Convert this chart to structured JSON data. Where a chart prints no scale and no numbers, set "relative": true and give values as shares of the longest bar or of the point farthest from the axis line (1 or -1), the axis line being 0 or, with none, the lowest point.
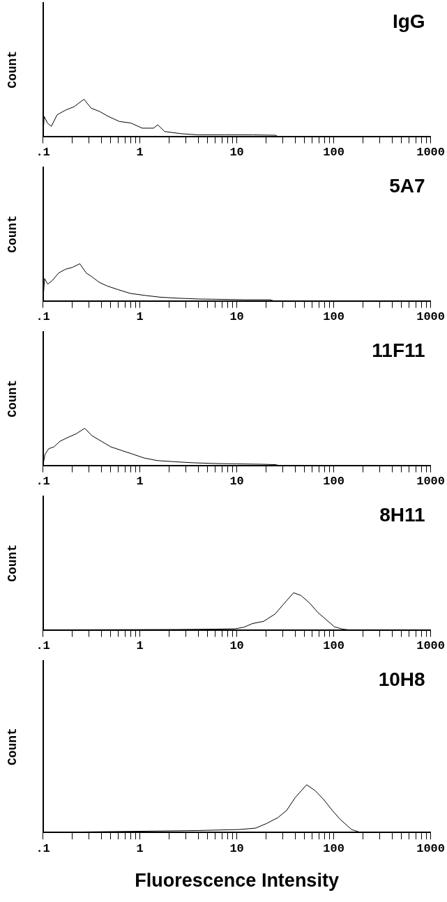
{
  "chart_data": [
    {
      "type": "line",
      "title": "IgG",
      "ylabel": "Count",
      "relative": true,
      "log": "x",
      "grid": false,
      "legend": false,
      "marker": "none",
      "xlim": [
        0.1,
        1000
      ],
      "xticks": [
        {
          "value": 0.1,
          "label": ".1"
        },
        {
          "value": 0.2,
          "label": null
        },
        {
          "value": 0.3,
          "label": null
        },
        {
          "value": 0.4,
          "label": null
        },
        {
          "value": 0.5,
          "label": null
        },
        {
          "value": 0.6,
          "label": null
        },
        {
          "value": 0.7,
          "label": null
        },
        {
          "value": 0.8,
          "label": null
        },
        {
          "value": 0.9,
          "label": null
        },
        1,
        {
          "value": 2,
          "label": null
        },
        {
          "value": 3,
          "label": null
        },
        {
          "value": 4,
          "label": null
        },
        {
          "value": 5,
          "label": null
        },
        {
          "value": 6,
          "label": null
        },
        {
          "value": 7,
          "label": null
        },
        {
          "value": 8,
          "label": null
        },
        {
          "value": 9,
          "label": null
        },
        10,
        {
          "value": 20,
          "label": null
        },
        {
          "value": 30,
          "label": null
        },
        {
          "value": 40,
          "label": null
        },
        {
          "value": 50,
          "label": null
        },
        {
          "value": 60,
          "label": null
        },
        {
          "value": 70,
          "label": null
        },
        {
          "value": 80,
          "label": null
        },
        {
          "value": 90,
          "label": null
        },
        100,
        {
          "value": 200,
          "label": null
        },
        {
          "value": 300,
          "label": null
        },
        {
          "value": 400,
          "label": null
        },
        {
          "value": 500,
          "label": null
        },
        {
          "value": 600,
          "label": null
        },
        {
          "value": 700,
          "label": null
        },
        {
          "value": 800,
          "label": null
        },
        {
          "value": 900,
          "label": null
        },
        1000
      ],
      "x": [
        0.1,
        0.103,
        0.111,
        0.122,
        0.14,
        0.172,
        0.21,
        0.265,
        0.314,
        0.384,
        0.47,
        0.616,
        0.805,
        1.06,
        1.38,
        1.53,
        1.8,
        2.7,
        4,
        7.4,
        14.6,
        25,
        26.4,
        1000
      ],
      "series": [
        {
          "color": "#000000",
          "values": [
            0,
            0.54,
            0.36,
            0.27,
            0.58,
            0.71,
            0.8,
            1,
            0.76,
            0.67,
            0.54,
            0.4,
            0.36,
            0.22,
            0.22,
            0.31,
            0.13,
            0.07,
            0.04,
            0.04,
            0.04,
            0.03,
            0,
            0
          ]
        }
      ]
    },
    {
      "type": "line",
      "title": "5A7",
      "ylabel": "Count",
      "relative": true,
      "log": "x",
      "grid": false,
      "legend": false,
      "marker": "none",
      "xlim": [
        0.1,
        1000
      ],
      "xticks": [
        {
          "value": 0.1,
          "label": ".1"
        },
        {
          "value": 0.2,
          "label": null
        },
        {
          "value": 0.3,
          "label": null
        },
        {
          "value": 0.4,
          "label": null
        },
        {
          "value": 0.5,
          "label": null
        },
        {
          "value": 0.6,
          "label": null
        },
        {
          "value": 0.7,
          "label": null
        },
        {
          "value": 0.8,
          "label": null
        },
        {
          "value": 0.9,
          "label": null
        },
        1,
        {
          "value": 2,
          "label": null
        },
        {
          "value": 3,
          "label": null
        },
        {
          "value": 4,
          "label": null
        },
        {
          "value": 5,
          "label": null
        },
        {
          "value": 6,
          "label": null
        },
        {
          "value": 7,
          "label": null
        },
        {
          "value": 8,
          "label": null
        },
        {
          "value": 9,
          "label": null
        },
        10,
        {
          "value": 20,
          "label": null
        },
        {
          "value": 30,
          "label": null
        },
        {
          "value": 40,
          "label": null
        },
        {
          "value": 50,
          "label": null
        },
        {
          "value": 60,
          "label": null
        },
        {
          "value": 70,
          "label": null
        },
        {
          "value": 80,
          "label": null
        },
        {
          "value": 90,
          "label": null
        },
        100,
        {
          "value": 200,
          "label": null
        },
        {
          "value": 300,
          "label": null
        },
        {
          "value": 400,
          "label": null
        },
        {
          "value": 500,
          "label": null
        },
        {
          "value": 600,
          "label": null
        },
        {
          "value": 700,
          "label": null
        },
        {
          "value": 800,
          "label": null
        },
        {
          "value": 900,
          "label": null
        },
        1000
      ],
      "x": [
        0.1,
        0.104,
        0.112,
        0.125,
        0.145,
        0.17,
        0.2,
        0.24,
        0.28,
        0.32,
        0.38,
        0.46,
        0.6,
        0.8,
        1.1,
        1.6,
        2.5,
        4,
        7,
        12,
        22,
        24,
        1000
      ],
      "series": [
        {
          "color": "#000000",
          "values": [
            0,
            0.6,
            0.45,
            0.55,
            0.75,
            0.85,
            0.9,
            1,
            0.75,
            0.65,
            0.5,
            0.4,
            0.3,
            0.2,
            0.15,
            0.1,
            0.07,
            0.05,
            0.04,
            0.03,
            0.03,
            0,
            0
          ]
        }
      ]
    },
    {
      "type": "line",
      "title": "11F11",
      "ylabel": "Count",
      "relative": true,
      "log": "x",
      "grid": false,
      "legend": false,
      "marker": "none",
      "xlim": [
        0.1,
        1000
      ],
      "xticks": [
        {
          "value": 0.1,
          "label": ".1"
        },
        {
          "value": 0.2,
          "label": null
        },
        {
          "value": 0.3,
          "label": null
        },
        {
          "value": 0.4,
          "label": null
        },
        {
          "value": 0.5,
          "label": null
        },
        {
          "value": 0.6,
          "label": null
        },
        {
          "value": 0.7,
          "label": null
        },
        {
          "value": 0.8,
          "label": null
        },
        {
          "value": 0.9,
          "label": null
        },
        1,
        {
          "value": 2,
          "label": null
        },
        {
          "value": 3,
          "label": null
        },
        {
          "value": 4,
          "label": null
        },
        {
          "value": 5,
          "label": null
        },
        {
          "value": 6,
          "label": null
        },
        {
          "value": 7,
          "label": null
        },
        {
          "value": 8,
          "label": null
        },
        {
          "value": 9,
          "label": null
        },
        10,
        {
          "value": 20,
          "label": null
        },
        {
          "value": 30,
          "label": null
        },
        {
          "value": 40,
          "label": null
        },
        {
          "value": 50,
          "label": null
        },
        {
          "value": 60,
          "label": null
        },
        {
          "value": 70,
          "label": null
        },
        {
          "value": 80,
          "label": null
        },
        {
          "value": 90,
          "label": null
        },
        100,
        {
          "value": 200,
          "label": null
        },
        {
          "value": 300,
          "label": null
        },
        {
          "value": 400,
          "label": null
        },
        {
          "value": 500,
          "label": null
        },
        {
          "value": 600,
          "label": null
        },
        {
          "value": 700,
          "label": null
        },
        {
          "value": 800,
          "label": null
        },
        {
          "value": 900,
          "label": null
        },
        1000
      ],
      "x": [
        0.1,
        0.105,
        0.115,
        0.13,
        0.15,
        0.18,
        0.22,
        0.27,
        0.32,
        0.4,
        0.5,
        0.65,
        0.85,
        1.1,
        1.5,
        2.2,
        3.5,
        6,
        10,
        18,
        25,
        27,
        1000
      ],
      "series": [
        {
          "color": "#000000",
          "values": [
            0,
            0.3,
            0.45,
            0.5,
            0.65,
            0.75,
            0.85,
            1,
            0.8,
            0.65,
            0.5,
            0.4,
            0.3,
            0.2,
            0.13,
            0.1,
            0.07,
            0.05,
            0.04,
            0.03,
            0.02,
            0,
            0
          ]
        }
      ]
    },
    {
      "type": "line",
      "title": "8H11",
      "ylabel": "Count",
      "relative": true,
      "log": "x",
      "grid": false,
      "legend": false,
      "marker": "none",
      "xlim": [
        0.1,
        1000
      ],
      "xticks": [
        {
          "value": 0.1,
          "label": ".1"
        },
        {
          "value": 0.2,
          "label": null
        },
        {
          "value": 0.3,
          "label": null
        },
        {
          "value": 0.4,
          "label": null
        },
        {
          "value": 0.5,
          "label": null
        },
        {
          "value": 0.6,
          "label": null
        },
        {
          "value": 0.7,
          "label": null
        },
        {
          "value": 0.8,
          "label": null
        },
        {
          "value": 0.9,
          "label": null
        },
        1,
        {
          "value": 2,
          "label": null
        },
        {
          "value": 3,
          "label": null
        },
        {
          "value": 4,
          "label": null
        },
        {
          "value": 5,
          "label": null
        },
        {
          "value": 6,
          "label": null
        },
        {
          "value": 7,
          "label": null
        },
        {
          "value": 8,
          "label": null
        },
        {
          "value": 9,
          "label": null
        },
        10,
        {
          "value": 20,
          "label": null
        },
        {
          "value": 30,
          "label": null
        },
        {
          "value": 40,
          "label": null
        },
        {
          "value": 50,
          "label": null
        },
        {
          "value": 60,
          "label": null
        },
        {
          "value": 70,
          "label": null
        },
        {
          "value": 80,
          "label": null
        },
        {
          "value": 90,
          "label": null
        },
        100,
        {
          "value": 200,
          "label": null
        },
        {
          "value": 300,
          "label": null
        },
        {
          "value": 400,
          "label": null
        },
        {
          "value": 500,
          "label": null
        },
        {
          "value": 600,
          "label": null
        },
        {
          "value": 700,
          "label": null
        },
        {
          "value": 800,
          "label": null
        },
        {
          "value": 900,
          "label": null
        },
        1000
      ],
      "x": [
        0.1,
        2.5,
        6,
        9.7,
        11.8,
        14.5,
        18.9,
        24.9,
        30.5,
        38.5,
        45.7,
        56,
        68.5,
        84,
        102,
        124,
        143,
        1000
      ],
      "series": [
        {
          "color": "#000000",
          "values": [
            0,
            0.01,
            0.02,
            0.03,
            0.07,
            0.17,
            0.23,
            0.43,
            0.7,
            1,
            0.93,
            0.73,
            0.47,
            0.27,
            0.08,
            0.02,
            0,
            0
          ]
        }
      ]
    },
    {
      "type": "line",
      "title": "10H8",
      "ylabel": "Count",
      "xlabel": "Fluorescence Intensity",
      "relative": true,
      "log": "x",
      "grid": false,
      "legend": false,
      "marker": "none",
      "xlim": [
        0.1,
        1000
      ],
      "xticks": [
        {
          "value": 0.1,
          "label": ".1"
        },
        {
          "value": 0.2,
          "label": null
        },
        {
          "value": 0.3,
          "label": null
        },
        {
          "value": 0.4,
          "label": null
        },
        {
          "value": 0.5,
          "label": null
        },
        {
          "value": 0.6,
          "label": null
        },
        {
          "value": 0.7,
          "label": null
        },
        {
          "value": 0.8,
          "label": null
        },
        {
          "value": 0.9,
          "label": null
        },
        1,
        {
          "value": 2,
          "label": null
        },
        {
          "value": 3,
          "label": null
        },
        {
          "value": 4,
          "label": null
        },
        {
          "value": 5,
          "label": null
        },
        {
          "value": 6,
          "label": null
        },
        {
          "value": 7,
          "label": null
        },
        {
          "value": 8,
          "label": null
        },
        {
          "value": 9,
          "label": null
        },
        10,
        {
          "value": 20,
          "label": null
        },
        {
          "value": 30,
          "label": null
        },
        {
          "value": 40,
          "label": null
        },
        {
          "value": 50,
          "label": null
        },
        {
          "value": 60,
          "label": null
        },
        {
          "value": 70,
          "label": null
        },
        {
          "value": 80,
          "label": null
        },
        {
          "value": 90,
          "label": null
        },
        100,
        {
          "value": 200,
          "label": null
        },
        {
          "value": 300,
          "label": null
        },
        {
          "value": 400,
          "label": null
        },
        {
          "value": 500,
          "label": null
        },
        {
          "value": 600,
          "label": null
        },
        {
          "value": 700,
          "label": null
        },
        {
          "value": 800,
          "label": null
        },
        {
          "value": 900,
          "label": null
        },
        1000
      ],
      "x": [
        0.1,
        4,
        10.4,
        15.6,
        20.4,
        26.5,
        32.6,
        40,
        52.5,
        64,
        78.8,
        96.7,
        117,
        153,
        189,
        1000
      ],
      "series": [
        {
          "color": "#000000",
          "values": [
            0,
            0.04,
            0.06,
            0.09,
            0.19,
            0.31,
            0.46,
            0.73,
            1,
            0.88,
            0.69,
            0.46,
            0.27,
            0.06,
            0,
            0
          ]
        }
      ]
    }
  ]
}
